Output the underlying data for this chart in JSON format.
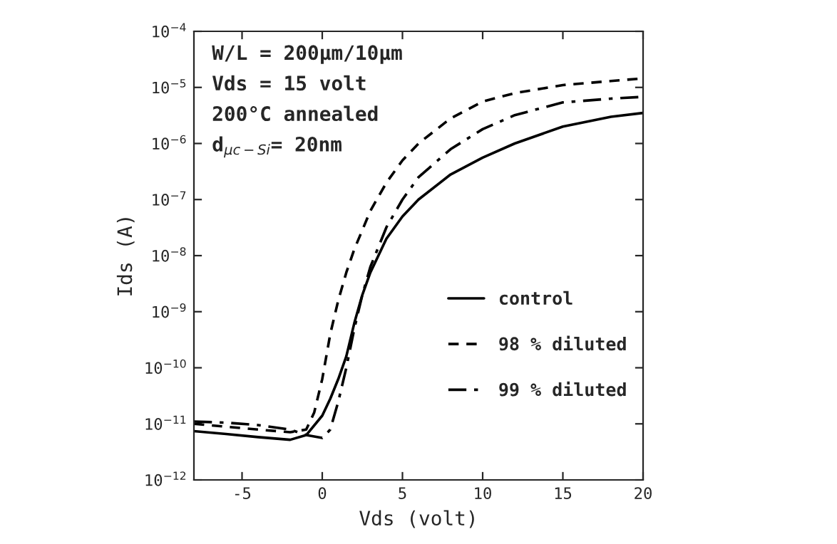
{
  "chart_data": {
    "type": "line",
    "xlabel": "Vds (volt)",
    "ylabel": "Ids (A)",
    "log": "y",
    "grid": false,
    "legend": "right",
    "marker": "none",
    "xlim": [
      -8,
      20
    ],
    "xticks": [
      -5,
      0,
      5,
      10,
      15,
      20
    ],
    "ylim": [
      1e-12,
      0.0001
    ],
    "yticks": [
      {
        "value": 1e-12,
        "label": "10$^{−12}$"
      },
      {
        "value": 1e-11,
        "label": "10$^{−11}$"
      },
      {
        "value": 1e-10,
        "label": "10$^{−10}$"
      },
      {
        "value": 1e-09,
        "label": "10$^{−9}$"
      },
      {
        "value": 1e-08,
        "label": "10$^{−8}$"
      },
      {
        "value": 1e-07,
        "label": "10$^{−7}$"
      },
      {
        "value": 1e-06,
        "label": "10$^{−6}$"
      },
      {
        "value": 1e-05,
        "label": "10$^{−5}$"
      },
      {
        "value": 0.0001,
        "label": "10$^{−4}$"
      }
    ],
    "annotations": [
      "W/L = 200μm/10μm",
      "Vds = 15 volt",
      "200°C annealed",
      "d$_{μc−Si}$= 20nm"
    ],
    "series": [
      {
        "name": "control",
        "color": "#000000",
        "line_style": "solid",
        "x": [
          -8,
          -6,
          -4,
          -2,
          -1,
          0,
          0.5,
          1,
          1.5,
          2,
          2.5,
          3,
          4,
          5,
          6,
          8,
          10,
          12,
          15,
          18,
          20
        ],
        "values": [
          7.4e-12,
          6.6e-12,
          5.8e-12,
          5.2e-12,
          6.3e-12,
          1.4e-11,
          2.8e-11,
          6.3e-11,
          1.6e-10,
          6.3e-10,
          2e-09,
          5e-09,
          2e-08,
          5e-08,
          1e-07,
          2.8e-07,
          5.6e-07,
          1e-06,
          2e-06,
          3e-06,
          3.5e-06
        ]
      },
      {
        "name": "98 % diluted",
        "color": "#000000",
        "line_style": "dashed",
        "x": [
          -8,
          -6,
          -4,
          -2,
          -1,
          -0.5,
          0,
          0.5,
          1,
          1.5,
          2,
          3,
          4,
          5,
          6,
          8,
          10,
          12,
          15,
          18,
          20
        ],
        "values": [
          1e-11,
          8.9e-12,
          7.9e-12,
          7.1e-12,
          7.9e-12,
          1.6e-11,
          6.3e-11,
          4e-10,
          1.6e-09,
          5e-09,
          1.3e-08,
          6.3e-08,
          2e-07,
          5e-07,
          1e-06,
          2.8e-06,
          5.6e-06,
          7.9e-06,
          1.1e-05,
          1.3e-05,
          1.45e-05
        ]
      },
      {
        "name": "99 % diluted",
        "color": "#000000",
        "line_style": "dashdot",
        "x": [
          -8,
          -6,
          -4,
          -2,
          -1,
          0,
          0.5,
          1,
          1.5,
          2,
          2.5,
          3,
          4,
          5,
          6,
          8,
          10,
          12,
          15,
          18,
          20
        ],
        "values": [
          1.1e-11,
          1.05e-11,
          9.5e-12,
          7.9e-12,
          6.3e-12,
          5.6e-12,
          7.9e-12,
          2.5e-11,
          1e-10,
          5e-10,
          2e-09,
          6.3e-09,
          3.2e-08,
          1e-07,
          2.5e-07,
          7.9e-07,
          1.8e-06,
          3.2e-06,
          5.4e-06,
          6.3e-06,
          6.8e-06
        ]
      }
    ]
  }
}
